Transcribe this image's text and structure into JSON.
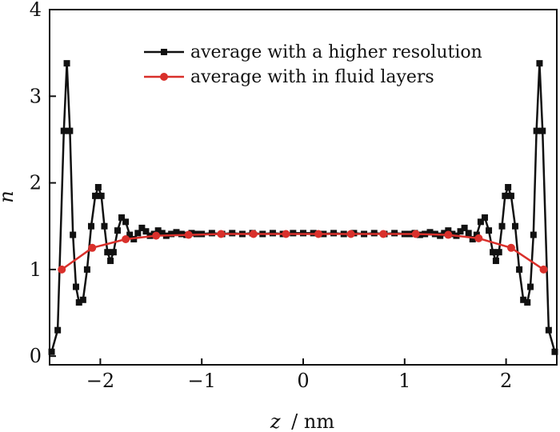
{
  "chart_data": {
    "type": "line",
    "title": "",
    "xlabel": "z / nm",
    "xlabel_var": "z",
    "xlabel_unit": "/ nm",
    "ylabel": "n",
    "xlim": [
      -2.5,
      2.5
    ],
    "ylim": [
      -0.1,
      4.0
    ],
    "xticks": [
      -2,
      -1,
      0,
      1,
      2
    ],
    "xtick_labels": [
      "−2",
      "−1",
      "0",
      "1",
      "2"
    ],
    "yticks": [
      0,
      1,
      2,
      3,
      4
    ],
    "ytick_labels": [
      "0",
      "1",
      "2",
      "3",
      "4"
    ],
    "legend_position": "top-center",
    "series": [
      {
        "name": "average with a higher resolution",
        "color": "#111111",
        "marker": "square",
        "x": [
          -2.48,
          -2.42,
          -2.36,
          -2.33,
          -2.3,
          -2.27,
          -2.24,
          -2.21,
          -2.17,
          -2.13,
          -2.09,
          -2.05,
          -2.02,
          -1.99,
          -1.96,
          -1.93,
          -1.9,
          -1.87,
          -1.83,
          -1.79,
          -1.75,
          -1.71,
          -1.67,
          -1.63,
          -1.59,
          -1.55,
          -1.51,
          -1.47,
          -1.43,
          -1.39,
          -1.35,
          -1.3,
          -1.25,
          -1.2,
          -1.15,
          -1.1,
          -1.05,
          -1.0,
          -0.9,
          -0.8,
          -0.7,
          -0.6,
          -0.5,
          -0.4,
          -0.3,
          -0.2,
          -0.1,
          0.0,
          0.1,
          0.2,
          0.3,
          0.4,
          0.5,
          0.6,
          0.7,
          0.8,
          0.9,
          1.0,
          1.05,
          1.1,
          1.15,
          1.2,
          1.25,
          1.3,
          1.35,
          1.39,
          1.43,
          1.47,
          1.51,
          1.55,
          1.59,
          1.63,
          1.67,
          1.71,
          1.75,
          1.79,
          1.83,
          1.87,
          1.9,
          1.93,
          1.96,
          1.99,
          2.02,
          2.05,
          2.09,
          2.13,
          2.17,
          2.21,
          2.24,
          2.27,
          2.3,
          2.33,
          2.36,
          2.42,
          2.48
        ],
        "values": [
          0.05,
          0.3,
          2.6,
          3.38,
          2.6,
          1.4,
          0.8,
          0.62,
          0.65,
          1.0,
          1.5,
          1.85,
          1.95,
          1.85,
          1.5,
          1.2,
          1.1,
          1.2,
          1.45,
          1.6,
          1.55,
          1.4,
          1.35,
          1.42,
          1.48,
          1.44,
          1.39,
          1.41,
          1.45,
          1.42,
          1.39,
          1.41,
          1.43,
          1.41,
          1.4,
          1.42,
          1.41,
          1.41,
          1.42,
          1.41,
          1.42,
          1.41,
          1.42,
          1.41,
          1.42,
          1.41,
          1.42,
          1.42,
          1.42,
          1.41,
          1.42,
          1.41,
          1.42,
          1.41,
          1.42,
          1.41,
          1.42,
          1.41,
          1.41,
          1.42,
          1.4,
          1.41,
          1.43,
          1.41,
          1.39,
          1.42,
          1.45,
          1.41,
          1.39,
          1.44,
          1.48,
          1.42,
          1.35,
          1.4,
          1.55,
          1.6,
          1.45,
          1.2,
          1.1,
          1.2,
          1.5,
          1.85,
          1.95,
          1.85,
          1.5,
          1.0,
          0.65,
          0.62,
          0.8,
          1.4,
          2.6,
          3.38,
          2.6,
          0.3,
          0.05
        ]
      },
      {
        "name": "average with in fluid layers",
        "color": "#d9302b",
        "marker": "circle",
        "x": [
          -2.38,
          -2.08,
          -1.75,
          -1.45,
          -1.13,
          -0.81,
          -0.49,
          -0.17,
          0.15,
          0.47,
          0.79,
          1.11,
          1.43,
          1.73,
          2.05,
          2.37
        ],
        "values": [
          1.0,
          1.25,
          1.35,
          1.39,
          1.4,
          1.41,
          1.41,
          1.41,
          1.41,
          1.41,
          1.41,
          1.41,
          1.4,
          1.36,
          1.25,
          1.0
        ]
      }
    ]
  }
}
